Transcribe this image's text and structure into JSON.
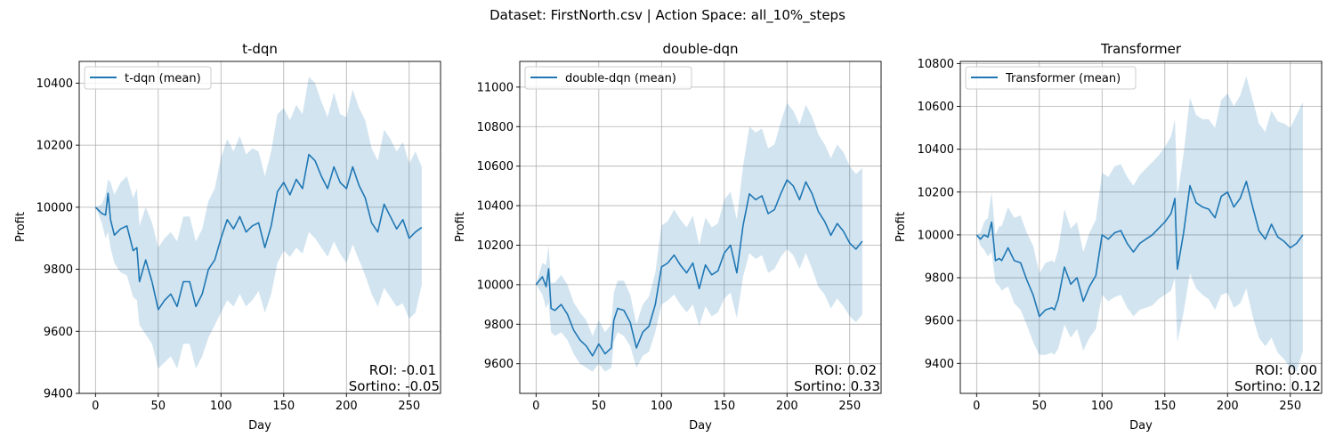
{
  "figure": {
    "suptitle": "Dataset: FirstNorth.csv | Action Space: all_10%_steps",
    "line_color": "#1f77b4",
    "band_color": "#1f77b4",
    "grid": true
  },
  "chart_data": [
    {
      "type": "line",
      "title": "t-dqn",
      "xlabel": "Day",
      "ylabel": "Profit",
      "xlim": [
        -13,
        275
      ],
      "ylim": [
        9400,
        10470
      ],
      "xticks": [
        0,
        50,
        100,
        150,
        200,
        250
      ],
      "yticks": [
        9400,
        9600,
        9800,
        10000,
        10200,
        10400
      ],
      "legend": "top-left",
      "annotations": [
        "ROI: -0.01",
        "Sortino: -0.05"
      ],
      "series": [
        {
          "name": "t-dqn (mean)",
          "x": [
            0,
            5,
            8,
            10,
            12,
            15,
            20,
            25,
            30,
            33,
            35,
            40,
            45,
            50,
            55,
            60,
            65,
            70,
            75,
            80,
            85,
            90,
            95,
            100,
            105,
            110,
            115,
            120,
            125,
            130,
            135,
            140,
            145,
            150,
            155,
            160,
            165,
            170,
            175,
            180,
            185,
            190,
            195,
            200,
            205,
            210,
            215,
            220,
            225,
            230,
            235,
            240,
            245,
            250,
            255,
            260
          ],
          "y": [
            10000,
            9980,
            9975,
            10045,
            9960,
            9910,
            9930,
            9940,
            9860,
            9870,
            9760,
            9830,
            9760,
            9670,
            9700,
            9720,
            9680,
            9760,
            9760,
            9680,
            9720,
            9800,
            9830,
            9900,
            9960,
            9930,
            9970,
            9920,
            9940,
            9950,
            9870,
            9940,
            10050,
            10080,
            10040,
            10090,
            10060,
            10170,
            10150,
            10100,
            10060,
            10130,
            10080,
            10060,
            10130,
            10070,
            10030,
            9950,
            9920,
            10010,
            9970,
            9930,
            9960,
            9900,
            9920,
            9935
          ],
          "lower": [
            10000,
            9950,
            9900,
            9920,
            9870,
            9820,
            9790,
            9780,
            9710,
            9700,
            9620,
            9590,
            9560,
            9480,
            9500,
            9520,
            9480,
            9560,
            9560,
            9480,
            9520,
            9580,
            9620,
            9660,
            9700,
            9680,
            9720,
            9680,
            9700,
            9730,
            9660,
            9720,
            9820,
            9860,
            9840,
            9870,
            9850,
            9920,
            9900,
            9870,
            9840,
            9890,
            9850,
            9820,
            9880,
            9830,
            9780,
            9720,
            9680,
            9740,
            9710,
            9680,
            9690,
            9640,
            9660,
            9750
          ],
          "upper": [
            10000,
            10010,
            10040,
            10090,
            10080,
            10040,
            10080,
            10100,
            10030,
            10060,
            9940,
            10000,
            9950,
            9870,
            9900,
            9920,
            9890,
            9970,
            9970,
            9890,
            9930,
            10020,
            10060,
            10160,
            10220,
            10180,
            10230,
            10170,
            10190,
            10180,
            10100,
            10180,
            10300,
            10320,
            10280,
            10330,
            10300,
            10420,
            10400,
            10340,
            10290,
            10370,
            10300,
            10290,
            10380,
            10320,
            10280,
            10190,
            10150,
            10250,
            10220,
            10180,
            10210,
            10140,
            10180,
            10130
          ]
        }
      ]
    },
    {
      "type": "line",
      "title": "double-dqn",
      "xlabel": "Day",
      "ylabel": "Profit",
      "xlim": [
        -13,
        275
      ],
      "ylim": [
        9450,
        11130
      ],
      "xticks": [
        0,
        50,
        100,
        150,
        200,
        250
      ],
      "yticks": [
        9600,
        9800,
        10000,
        10200,
        10400,
        10600,
        10800,
        11000
      ],
      "legend": "top-left",
      "annotations": [
        "ROI: 0.02",
        "Sortino: 0.33"
      ],
      "series": [
        {
          "name": "double-dqn (mean)",
          "x": [
            0,
            5,
            8,
            10,
            12,
            15,
            20,
            25,
            30,
            35,
            40,
            45,
            50,
            55,
            60,
            62,
            65,
            70,
            75,
            80,
            85,
            90,
            95,
            100,
            105,
            110,
            115,
            120,
            125,
            130,
            135,
            140,
            145,
            150,
            155,
            160,
            165,
            170,
            175,
            180,
            185,
            190,
            195,
            200,
            205,
            210,
            215,
            220,
            225,
            230,
            235,
            240,
            245,
            250,
            255,
            260
          ],
          "y": [
            10000,
            10040,
            9990,
            10080,
            9880,
            9870,
            9900,
            9850,
            9770,
            9720,
            9690,
            9640,
            9700,
            9650,
            9680,
            9820,
            9880,
            9870,
            9810,
            9680,
            9760,
            9790,
            9900,
            10090,
            10110,
            10150,
            10100,
            10060,
            10110,
            9980,
            10100,
            10050,
            10070,
            10160,
            10200,
            10060,
            10300,
            10460,
            10430,
            10450,
            10360,
            10380,
            10460,
            10530,
            10500,
            10430,
            10520,
            10460,
            10370,
            10320,
            10250,
            10310,
            10270,
            10210,
            10180,
            10220
          ],
          "lower": [
            10000,
            9950,
            9880,
            9910,
            9760,
            9740,
            9760,
            9720,
            9650,
            9600,
            9580,
            9560,
            9600,
            9560,
            9580,
            9710,
            9760,
            9740,
            9690,
            9580,
            9640,
            9660,
            9760,
            9900,
            9920,
            9950,
            9900,
            9860,
            9900,
            9790,
            9890,
            9840,
            9860,
            9930,
            9960,
            9830,
            10040,
            10160,
            10130,
            10150,
            10060,
            10080,
            10140,
            10180,
            10150,
            10080,
            10160,
            10080,
            9990,
            9950,
            9880,
            9930,
            9890,
            9840,
            9810,
            9850
          ],
          "upper": [
            10000,
            10110,
            10100,
            10200,
            10010,
            10010,
            10050,
            10000,
            9910,
            9860,
            9820,
            9740,
            9820,
            9760,
            9800,
            9960,
            10020,
            10020,
            9950,
            9800,
            9900,
            9940,
            10060,
            10300,
            10320,
            10380,
            10330,
            10290,
            10350,
            10200,
            10340,
            10290,
            10310,
            10430,
            10470,
            10330,
            10600,
            10800,
            10770,
            10790,
            10690,
            10710,
            10820,
            10920,
            10880,
            10810,
            10910,
            10850,
            10760,
            10710,
            10640,
            10710,
            10670,
            10600,
            10560,
            10590
          ]
        }
      ]
    },
    {
      "type": "line",
      "title": "Transformer",
      "xlabel": "Day",
      "ylabel": "Profit",
      "xlim": [
        -13,
        275
      ],
      "ylim": [
        9260,
        10810
      ],
      "xticks": [
        0,
        50,
        100,
        150,
        200,
        250
      ],
      "yticks": [
        9400,
        9600,
        9800,
        10000,
        10200,
        10400,
        10600,
        10800
      ],
      "legend": "top-left",
      "annotations": [
        "ROI: 0.00",
        "Sortino: 0.12"
      ],
      "series": [
        {
          "name": "Transformer (mean)",
          "x": [
            0,
            3,
            6,
            9,
            12,
            15,
            18,
            20,
            25,
            30,
            35,
            40,
            45,
            50,
            55,
            60,
            62,
            65,
            70,
            75,
            80,
            85,
            90,
            95,
            100,
            105,
            110,
            115,
            120,
            125,
            130,
            135,
            140,
            145,
            150,
            155,
            158,
            160,
            165,
            170,
            175,
            180,
            185,
            190,
            195,
            200,
            205,
            210,
            215,
            220,
            225,
            230,
            235,
            240,
            245,
            250,
            255,
            260
          ],
          "y": [
            10000,
            9980,
            10000,
            9990,
            10060,
            9880,
            9890,
            9880,
            9940,
            9880,
            9870,
            9790,
            9720,
            9620,
            9650,
            9660,
            9650,
            9700,
            9850,
            9770,
            9800,
            9690,
            9760,
            9810,
            10000,
            9980,
            10010,
            10020,
            9960,
            9920,
            9960,
            9980,
            10000,
            10030,
            10060,
            10100,
            10170,
            9840,
            10010,
            10230,
            10150,
            10130,
            10120,
            10080,
            10180,
            10200,
            10130,
            10170,
            10250,
            10130,
            10020,
            9980,
            10050,
            9990,
            9970,
            9940,
            9960,
            10000
          ],
          "lower": [
            10000,
            9950,
            9930,
            9900,
            9920,
            9780,
            9760,
            9740,
            9760,
            9680,
            9650,
            9580,
            9500,
            9440,
            9440,
            9450,
            9440,
            9470,
            9580,
            9520,
            9560,
            9460,
            9520,
            9560,
            9720,
            9690,
            9710,
            9720,
            9660,
            9620,
            9650,
            9660,
            9670,
            9700,
            9720,
            9740,
            9800,
            9500,
            9640,
            9820,
            9750,
            9720,
            9700,
            9650,
            9720,
            9730,
            9660,
            9680,
            9750,
            9620,
            9520,
            9480,
            9520,
            9450,
            9420,
            9380,
            9360,
            9460
          ],
          "upper": [
            10000,
            10010,
            10060,
            10080,
            10200,
            10000,
            10040,
            10040,
            10130,
            10080,
            10090,
            10010,
            9950,
            9820,
            9870,
            9880,
            9870,
            9930,
            10120,
            10030,
            10060,
            9920,
            10010,
            10070,
            10290,
            10270,
            10320,
            10330,
            10270,
            10230,
            10280,
            10310,
            10340,
            10370,
            10410,
            10460,
            10540,
            10180,
            10380,
            10640,
            10560,
            10540,
            10540,
            10500,
            10630,
            10660,
            10600,
            10650,
            10740,
            10630,
            10520,
            10480,
            10580,
            10530,
            10520,
            10500,
            10560,
            10620
          ]
        }
      ]
    }
  ]
}
